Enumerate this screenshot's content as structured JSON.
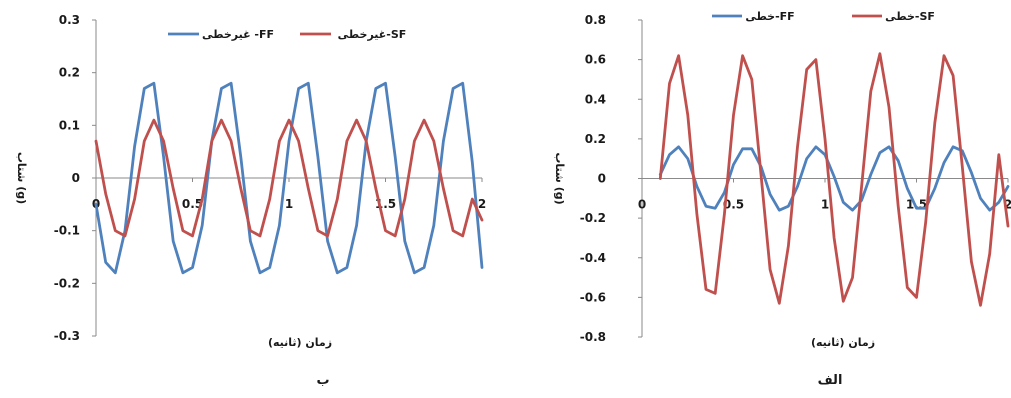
{
  "chart_data": [
    {
      "type": "line",
      "panel_label": "ب",
      "xlabel": "زمان (ثانیه)",
      "ylabel": "شتاب (g)",
      "xlim": [
        0,
        2
      ],
      "ylim": [
        -0.3,
        0.3
      ],
      "x_ticks": [
        "0",
        "0.5",
        "1",
        "1.5",
        "2"
      ],
      "y_ticks": [
        "0.3",
        "0.2",
        "0.1",
        "0",
        "-0.1",
        "-0.2",
        "-0.3"
      ],
      "grid": false,
      "legend_position": "top",
      "series": [
        {
          "name": "غیرخطی -FF",
          "color": "#4f81bd",
          "x": [
            0,
            0.05,
            0.1,
            0.15,
            0.2,
            0.25,
            0.3,
            0.35,
            0.4,
            0.45,
            0.5,
            0.55,
            0.6,
            0.65,
            0.7,
            0.75,
            0.8,
            0.85,
            0.9,
            0.95,
            1.0,
            1.05,
            1.1,
            1.15,
            1.2,
            1.25,
            1.3,
            1.35,
            1.4,
            1.45,
            1.5,
            1.55,
            1.6,
            1.65,
            1.7,
            1.75,
            1.8,
            1.85,
            1.9,
            1.95,
            2.0
          ],
          "y": [
            -0.05,
            -0.16,
            -0.18,
            -0.1,
            0.06,
            0.17,
            0.18,
            0.04,
            -0.12,
            -0.18,
            -0.17,
            -0.09,
            0.07,
            0.17,
            0.18,
            0.04,
            -0.12,
            -0.18,
            -0.17,
            -0.09,
            0.07,
            0.17,
            0.18,
            0.04,
            -0.12,
            -0.18,
            -0.17,
            -0.09,
            0.07,
            0.17,
            0.18,
            0.04,
            -0.12,
            -0.18,
            -0.17,
            -0.09,
            0.07,
            0.17,
            0.18,
            0.03,
            -0.17
          ]
        },
        {
          "name": "غیرخطی-SF",
          "color": "#c0504d",
          "x": [
            0,
            0.05,
            0.1,
            0.15,
            0.2,
            0.25,
            0.3,
            0.35,
            0.4,
            0.45,
            0.5,
            0.55,
            0.6,
            0.65,
            0.7,
            0.75,
            0.8,
            0.85,
            0.9,
            0.95,
            1.0,
            1.05,
            1.1,
            1.15,
            1.2,
            1.25,
            1.3,
            1.35,
            1.4,
            1.45,
            1.5,
            1.55,
            1.6,
            1.65,
            1.7,
            1.75,
            1.8,
            1.85,
            1.9,
            1.95,
            2.0
          ],
          "y": [
            0.07,
            -0.03,
            -0.1,
            -0.11,
            -0.04,
            0.07,
            0.11,
            0.07,
            -0.02,
            -0.1,
            -0.11,
            -0.04,
            0.07,
            0.11,
            0.07,
            -0.02,
            -0.1,
            -0.11,
            -0.04,
            0.07,
            0.11,
            0.07,
            -0.02,
            -0.1,
            -0.11,
            -0.04,
            0.07,
            0.11,
            0.07,
            -0.02,
            -0.1,
            -0.11,
            -0.04,
            0.07,
            0.11,
            0.07,
            -0.02,
            -0.1,
            -0.11,
            -0.04,
            -0.08
          ]
        }
      ]
    },
    {
      "type": "line",
      "panel_label": "الف",
      "xlabel": "زمان (ثانیه)",
      "ylabel": "شتاب (g)",
      "xlim": [
        0,
        2
      ],
      "ylim": [
        -0.8,
        0.8
      ],
      "x_ticks": [
        "0",
        "0.5",
        "1",
        "1.5",
        "2"
      ],
      "y_ticks": [
        "0.8",
        "0.6",
        "0.4",
        "0.2",
        "0",
        "-0.2",
        "-0.4",
        "-0.6",
        "-0.8"
      ],
      "grid": false,
      "legend_position": "top",
      "series": [
        {
          "name": "خطی-FF",
          "color": "#4f81bd",
          "x": [
            0.1,
            0.15,
            0.2,
            0.25,
            0.3,
            0.35,
            0.4,
            0.45,
            0.5,
            0.55,
            0.6,
            0.65,
            0.7,
            0.75,
            0.8,
            0.85,
            0.9,
            0.95,
            1.0,
            1.05,
            1.1,
            1.15,
            1.2,
            1.25,
            1.3,
            1.35,
            1.4,
            1.45,
            1.5,
            1.55,
            1.6,
            1.65,
            1.7,
            1.75,
            1.8,
            1.85,
            1.9,
            1.95,
            2.0
          ],
          "y": [
            0.02,
            0.12,
            0.16,
            0.1,
            -0.04,
            -0.14,
            -0.15,
            -0.07,
            0.07,
            0.15,
            0.15,
            0.06,
            -0.08,
            -0.16,
            -0.14,
            -0.04,
            0.1,
            0.16,
            0.12,
            0.01,
            -0.12,
            -0.16,
            -0.11,
            0.02,
            0.13,
            0.16,
            0.09,
            -0.05,
            -0.15,
            -0.15,
            -0.05,
            0.08,
            0.16,
            0.14,
            0.03,
            -0.1,
            -0.16,
            -0.12,
            -0.04
          ]
        },
        {
          "name": "خطی-SF",
          "color": "#c0504d",
          "x": [
            0.1,
            0.15,
            0.2,
            0.25,
            0.3,
            0.35,
            0.4,
            0.45,
            0.5,
            0.55,
            0.6,
            0.65,
            0.7,
            0.75,
            0.8,
            0.85,
            0.9,
            0.95,
            1.0,
            1.05,
            1.1,
            1.15,
            1.2,
            1.25,
            1.3,
            1.35,
            1.4,
            1.45,
            1.5,
            1.55,
            1.6,
            1.65,
            1.7,
            1.75,
            1.8,
            1.85,
            1.9,
            1.95,
            2.0
          ],
          "y": [
            0.0,
            0.48,
            0.62,
            0.32,
            -0.18,
            -0.56,
            -0.58,
            -0.18,
            0.32,
            0.62,
            0.5,
            0.02,
            -0.46,
            -0.63,
            -0.34,
            0.16,
            0.55,
            0.6,
            0.2,
            -0.3,
            -0.62,
            -0.5,
            -0.04,
            0.44,
            0.63,
            0.36,
            -0.14,
            -0.55,
            -0.6,
            -0.22,
            0.28,
            0.62,
            0.52,
            0.06,
            -0.42,
            -0.64,
            -0.38,
            0.12,
            -0.24
          ]
        }
      ]
    }
  ]
}
